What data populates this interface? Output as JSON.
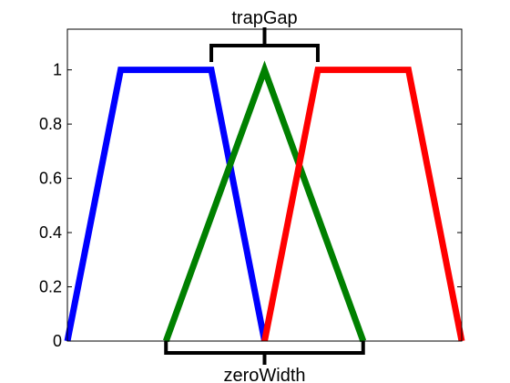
{
  "chart_data": {
    "type": "line",
    "title": "",
    "xlabel": "",
    "ylabel": "",
    "xlim": [
      0,
      1
    ],
    "ylim": [
      0,
      1.15
    ],
    "grid": false,
    "yticks": [
      0,
      0.2,
      0.4,
      0.6,
      0.8,
      1
    ],
    "ytick_labels": [
      "0",
      "0.2",
      "0.4",
      "0.6",
      "0.8",
      "1"
    ],
    "series": [
      {
        "color": "#0000ff",
        "points": [
          [
            0,
            0
          ],
          [
            0.135,
            1
          ],
          [
            0.365,
            1
          ],
          [
            0.5,
            0
          ]
        ]
      },
      {
        "color": "#008000",
        "points": [
          [
            0.25,
            0
          ],
          [
            0.5,
            1
          ],
          [
            0.75,
            0
          ]
        ]
      },
      {
        "color": "#ff0000",
        "points": [
          [
            0.5,
            0
          ],
          [
            0.635,
            1
          ],
          [
            0.865,
            1
          ],
          [
            1,
            0
          ]
        ]
      }
    ],
    "annotations": [
      {
        "text": "trapGap",
        "position": "top",
        "span": [
          0.365,
          0.635
        ]
      },
      {
        "text": "zeroWidth",
        "position": "bottom",
        "span": [
          0.25,
          0.75
        ]
      }
    ]
  }
}
